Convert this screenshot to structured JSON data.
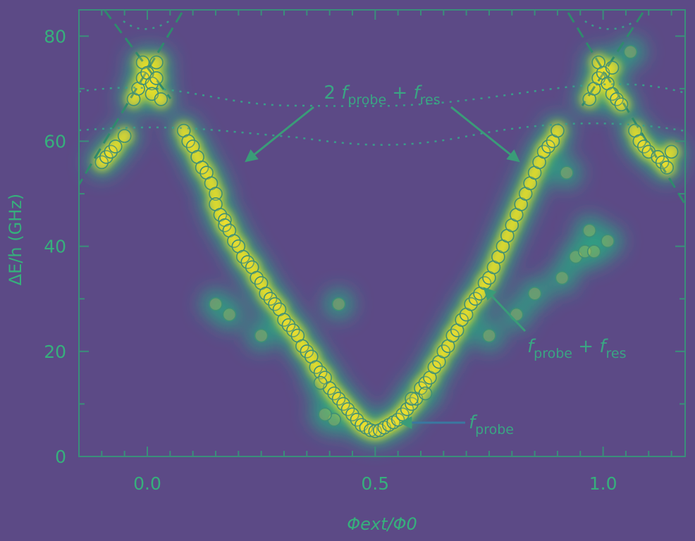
{
  "chart_data": {
    "type": "scatter",
    "title": "",
    "xlabel": "Φext/Φ0",
    "ylabel": "ΔE/h (GHz)",
    "xlim": [
      -0.15,
      1.18
    ],
    "ylim": [
      0,
      85
    ],
    "xticks": [
      {
        "value": 0.0,
        "label": "0.0"
      },
      {
        "value": 0.5,
        "label": "0.5"
      },
      {
        "value": 1.0,
        "label": "1.0"
      }
    ],
    "yticks": [
      {
        "value": 0,
        "label": "0"
      },
      {
        "value": 20,
        "label": "20"
      },
      {
        "value": 40,
        "label": "40"
      },
      {
        "value": 60,
        "label": "60"
      },
      {
        "value": 80,
        "label": "80"
      }
    ],
    "annotations": [
      {
        "text": "2 f_probe + f_res",
        "arrow_to": [
          [
            0.21,
            56
          ],
          [
            0.81,
            56
          ]
        ]
      },
      {
        "text": "f_probe + f_res",
        "arrow_to": [
          [
            0.74,
            31
          ]
        ]
      },
      {
        "text": "f_probe",
        "arrow_to": [
          [
            0.55,
            6
          ]
        ]
      }
    ],
    "colors": {
      "background": "#5c4a86",
      "heat_low": "#2fa082",
      "heat_high": "#f5e51c",
      "marker_edge": "#3e8f76",
      "text": "#36b07c"
    },
    "series": [
      {
        "values": [
          [
            -0.1,
            56
          ],
          [
            -0.09,
            57
          ],
          [
            -0.08,
            58
          ],
          [
            -0.07,
            59
          ],
          [
            -0.05,
            61
          ],
          [
            -0.03,
            68
          ],
          [
            -0.02,
            70
          ],
          [
            -0.01,
            72
          ],
          [
            -0.01,
            75
          ],
          [
            0.0,
            73
          ],
          [
            0.01,
            71
          ],
          [
            0.01,
            69
          ],
          [
            0.02,
            75
          ],
          [
            0.03,
            68
          ],
          [
            0.02,
            72
          ],
          [
            0.08,
            62
          ],
          [
            0.09,
            60
          ],
          [
            0.1,
            59
          ],
          [
            0.11,
            57
          ],
          [
            0.12,
            55
          ],
          [
            0.13,
            54
          ],
          [
            0.14,
            52
          ],
          [
            0.15,
            50
          ],
          [
            0.15,
            48
          ],
          [
            0.16,
            46
          ],
          [
            0.17,
            45
          ],
          [
            0.17,
            44
          ],
          [
            0.18,
            43
          ],
          [
            0.19,
            41
          ],
          [
            0.2,
            40
          ],
          [
            0.21,
            38
          ],
          [
            0.22,
            37
          ],
          [
            0.23,
            36
          ],
          [
            0.24,
            34
          ],
          [
            0.25,
            33
          ],
          [
            0.26,
            31
          ],
          [
            0.27,
            30
          ],
          [
            0.28,
            29
          ],
          [
            0.29,
            28
          ],
          [
            0.3,
            26
          ],
          [
            0.31,
            25
          ],
          [
            0.32,
            24
          ],
          [
            0.33,
            23
          ],
          [
            0.34,
            21
          ],
          [
            0.35,
            20
          ],
          [
            0.36,
            19
          ],
          [
            0.37,
            17
          ],
          [
            0.38,
            16
          ],
          [
            0.39,
            15
          ],
          [
            0.4,
            13
          ],
          [
            0.41,
            12
          ],
          [
            0.42,
            11
          ],
          [
            0.43,
            10
          ],
          [
            0.44,
            9
          ],
          [
            0.45,
            8
          ],
          [
            0.46,
            7
          ],
          [
            0.47,
            6
          ],
          [
            0.48,
            5.5
          ],
          [
            0.49,
            5
          ],
          [
            0.5,
            4.8
          ],
          [
            0.51,
            5
          ],
          [
            0.52,
            5.5
          ],
          [
            0.53,
            6
          ],
          [
            0.54,
            6.5
          ],
          [
            0.55,
            7
          ],
          [
            0.56,
            8
          ],
          [
            0.57,
            9
          ],
          [
            0.58,
            10
          ],
          [
            0.59,
            11
          ],
          [
            0.6,
            13
          ],
          [
            0.61,
            14
          ],
          [
            0.62,
            15
          ],
          [
            0.63,
            17
          ],
          [
            0.64,
            18
          ],
          [
            0.65,
            20
          ],
          [
            0.66,
            21
          ],
          [
            0.67,
            23
          ],
          [
            0.68,
            24
          ],
          [
            0.69,
            26
          ],
          [
            0.7,
            27
          ],
          [
            0.71,
            29
          ],
          [
            0.72,
            30
          ],
          [
            0.73,
            31
          ],
          [
            0.74,
            33
          ],
          [
            0.75,
            34
          ],
          [
            0.76,
            36
          ],
          [
            0.77,
            38
          ],
          [
            0.78,
            40
          ],
          [
            0.79,
            42
          ],
          [
            0.8,
            44
          ],
          [
            0.81,
            46
          ],
          [
            0.82,
            48
          ],
          [
            0.83,
            50
          ],
          [
            0.84,
            52
          ],
          [
            0.85,
            54
          ],
          [
            0.86,
            56
          ],
          [
            0.87,
            58
          ],
          [
            0.88,
            59
          ],
          [
            0.89,
            60
          ],
          [
            0.9,
            62
          ],
          [
            0.97,
            68
          ],
          [
            0.98,
            70
          ],
          [
            0.99,
            72
          ],
          [
            0.99,
            75
          ],
          [
            1.0,
            73
          ],
          [
            1.01,
            71
          ],
          [
            1.02,
            69
          ],
          [
            1.03,
            68
          ],
          [
            1.02,
            74
          ],
          [
            1.04,
            67
          ],
          [
            1.07,
            62
          ],
          [
            1.08,
            60
          ],
          [
            1.09,
            59
          ],
          [
            1.1,
            58
          ],
          [
            1.12,
            57
          ],
          [
            1.13,
            56
          ],
          [
            1.14,
            55
          ],
          [
            1.15,
            58
          ],
          [
            0.15,
            29
          ],
          [
            0.18,
            27
          ],
          [
            0.25,
            23
          ],
          [
            0.42,
            29
          ],
          [
            0.41,
            7
          ],
          [
            0.39,
            8
          ],
          [
            0.38,
            14
          ],
          [
            0.58,
            11
          ],
          [
            0.61,
            12
          ],
          [
            0.75,
            23
          ],
          [
            0.81,
            27
          ],
          [
            0.85,
            31
          ],
          [
            0.91,
            34
          ],
          [
            0.94,
            38
          ],
          [
            0.96,
            39
          ],
          [
            0.98,
            39
          ],
          [
            1.01,
            41
          ],
          [
            0.97,
            43
          ],
          [
            0.92,
            54
          ],
          [
            1.06,
            77
          ]
        ]
      }
    ]
  }
}
